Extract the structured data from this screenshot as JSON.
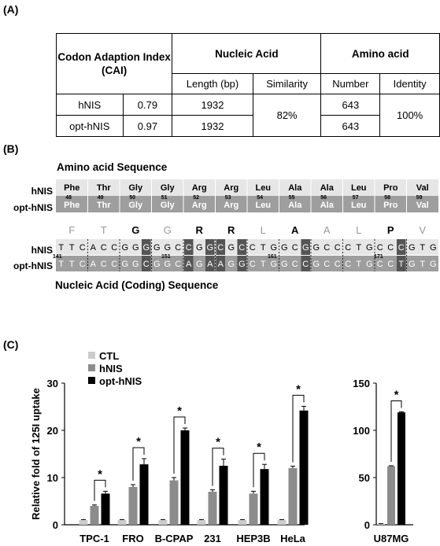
{
  "panels": {
    "a": "(A)",
    "b": "(B)",
    "c": "(C)"
  },
  "table": {
    "header_cai": "Codon Adaption Index (CAI)",
    "header_nucleic": "Nucleic Acid",
    "header_amino": "Amino acid",
    "sub_length": "Length (bp)",
    "sub_similarity": "Similarity",
    "sub_number": "Number",
    "sub_identity": "Identity",
    "rows": [
      {
        "name": "hNIS",
        "cai": "0.79",
        "length": "1932",
        "number": "643"
      },
      {
        "name": "opt-hNIS",
        "cai": "0.97",
        "length": "1932",
        "number": "643"
      }
    ],
    "similarity": "82%",
    "identity": "100%"
  },
  "sequence": {
    "amino_title": "Amino acid Sequence",
    "nucleic_title": "Nucleic Acid (Coding) Sequence",
    "row_hnis": "hNIS",
    "row_opt": "opt-hNIS",
    "amino_acids": [
      "Phe",
      "Thr",
      "Gly",
      "Gly",
      "Arg",
      "Arg",
      "Leu",
      "Ala",
      "Ala",
      "Leu",
      "Pro",
      "Val"
    ],
    "positions": [
      "48",
      "49",
      "50",
      "51",
      "52",
      "53",
      "54",
      "55",
      "56",
      "57",
      "58",
      "59"
    ],
    "letters": [
      "F",
      "T",
      "G",
      "G",
      "R",
      "R",
      "L",
      "A",
      "A",
      "L",
      "P",
      "V"
    ],
    "letters_bold": [
      false,
      false,
      true,
      false,
      true,
      true,
      false,
      true,
      false,
      false,
      true,
      false
    ],
    "hnis_nt": "TTCACCGGGGGCCGGCGCCTGGCGGCCCTGCCCGTG",
    "opt_nt": "TTCACCGGCGGCAGAAGGCTGGCCGCCCTGCCTGTG",
    "nt_positions": [
      {
        "label": "141",
        "at": 0
      },
      {
        "label": "151",
        "at": 10
      },
      {
        "label": "161",
        "at": 20
      },
      {
        "label": "171",
        "at": 30
      }
    ]
  },
  "chart_data": [
    {
      "type": "bar",
      "ylabel": "Relative fold of 125I uptake",
      "ylim": [
        0,
        30
      ],
      "yticks": [
        "0",
        "10",
        "20",
        "30"
      ],
      "categories": [
        "TPC-1",
        "FRO",
        "B-CPAP",
        "231",
        "HEP3B",
        "HeLa"
      ],
      "legend": [
        "CTL",
        "hNIS",
        "opt-hNIS"
      ],
      "legend_position": "top-left",
      "series": [
        {
          "name": "CTL",
          "values": [
            1,
            1,
            1,
            1,
            1,
            1
          ],
          "errors": [
            0.1,
            0.1,
            0.1,
            0.1,
            0.1,
            0.1
          ]
        },
        {
          "name": "hNIS",
          "values": [
            4.0,
            8.0,
            9.4,
            7.0,
            6.6,
            12.0
          ],
          "errors": [
            0.2,
            0.5,
            0.6,
            0.4,
            0.5,
            0.4
          ]
        },
        {
          "name": "opt-hNIS",
          "values": [
            6.6,
            12.8,
            20.0,
            12.5,
            11.8,
            24.2
          ],
          "errors": [
            0.5,
            1.2,
            0.5,
            1.4,
            1.0,
            0.9
          ]
        }
      ],
      "significance": "*"
    },
    {
      "type": "bar",
      "ylim": [
        0,
        150
      ],
      "yticks": [
        "0",
        "50",
        "100",
        "150"
      ],
      "categories": [
        "U87MG"
      ],
      "series": [
        {
          "name": "CTL",
          "values": [
            1
          ],
          "errors": [
            0.2
          ]
        },
        {
          "name": "hNIS",
          "values": [
            62
          ],
          "errors": [
            0.5
          ]
        },
        {
          "name": "opt-hNIS",
          "values": [
            119
          ],
          "errors": [
            0.6
          ]
        }
      ],
      "significance": "*"
    }
  ],
  "colors": {
    "ctl": "#cccccc",
    "hnis": "#8c8c8c",
    "opt": "#000000",
    "aa_light": "#e6e6e6",
    "aa_dark": "#9e9e9e",
    "nt_light": "#e6e6e6",
    "nt_dark": "#9e9e9e",
    "nt_diff": "#555555"
  }
}
